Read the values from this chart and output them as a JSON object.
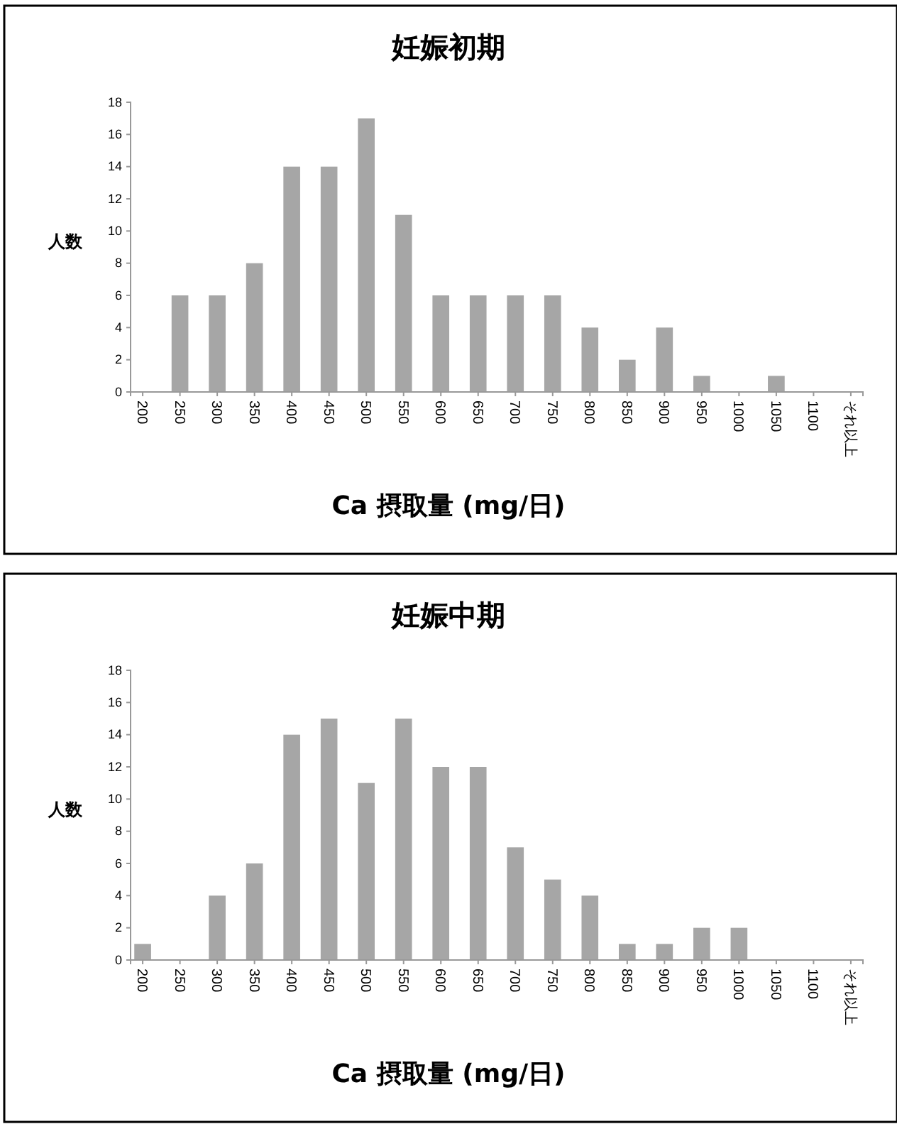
{
  "chart_data": [
    {
      "type": "bar",
      "title": "妊娠初期",
      "xlabel": "Ca 摂取量 (mg/日)",
      "ylabel": "人数",
      "categories": [
        "200",
        "250",
        "300",
        "350",
        "400",
        "450",
        "500",
        "550",
        "600",
        "650",
        "700",
        "750",
        "800",
        "850",
        "900",
        "950",
        "1000",
        "1050",
        "1100",
        "それ以上"
      ],
      "values": [
        0,
        6,
        6,
        8,
        14,
        14,
        17,
        11,
        6,
        6,
        6,
        6,
        4,
        2,
        4,
        1,
        0,
        1,
        0,
        0
      ],
      "color": "#a6a6a6",
      "ylim": [
        0,
        18
      ],
      "yticks": [
        0,
        2,
        4,
        6,
        8,
        10,
        12,
        14,
        16,
        18
      ]
    },
    {
      "type": "bar",
      "title": "妊娠中期",
      "xlabel": "Ca 摂取量 (mg/日)",
      "ylabel": "人数",
      "categories": [
        "200",
        "250",
        "300",
        "350",
        "400",
        "450",
        "500",
        "550",
        "600",
        "650",
        "700",
        "750",
        "800",
        "850",
        "900",
        "950",
        "1000",
        "1050",
        "1100",
        "それ以上"
      ],
      "values": [
        1,
        0,
        4,
        6,
        14,
        15,
        11,
        15,
        12,
        12,
        7,
        5,
        4,
        1,
        1,
        2,
        2,
        0,
        0,
        0
      ],
      "color": "#a6a6a6",
      "ylim": [
        0,
        18
      ],
      "yticks": [
        0,
        2,
        4,
        6,
        8,
        10,
        12,
        14,
        16,
        18
      ]
    }
  ]
}
